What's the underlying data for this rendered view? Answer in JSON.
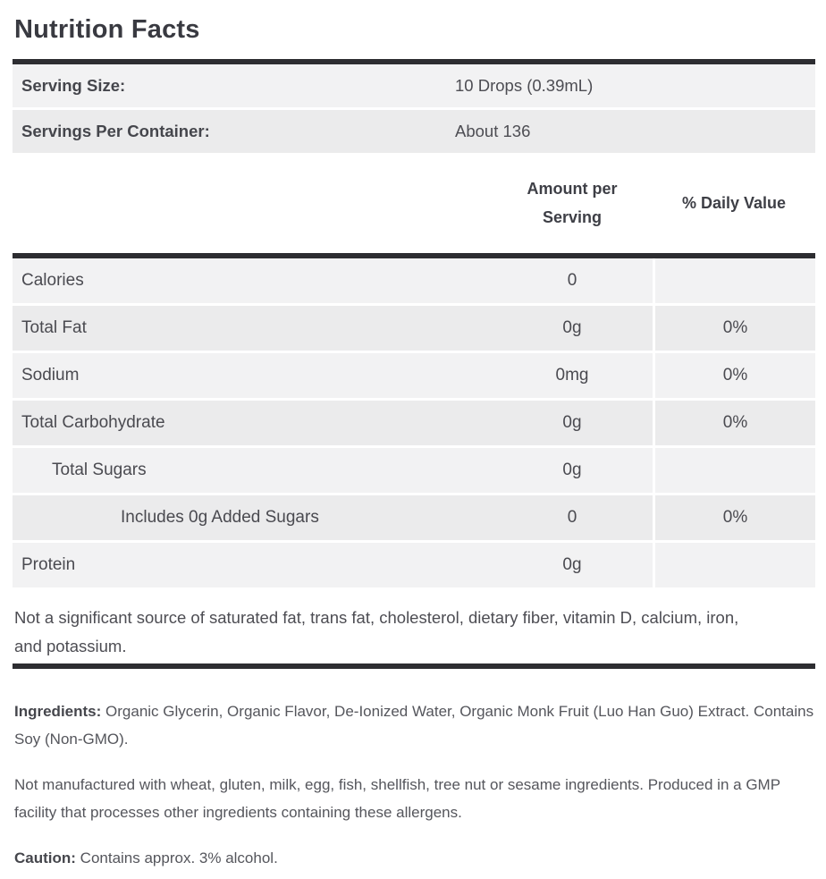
{
  "title": "Nutrition Facts",
  "serving_info": [
    {
      "label": "Serving Size:",
      "value": "10 Drops (0.39mL)"
    },
    {
      "label": "Servings Per Container:",
      "value": "About 136"
    }
  ],
  "table": {
    "headers": {
      "amount": "Amount per Serving",
      "daily_value": "% Daily Value"
    },
    "rows": [
      {
        "label": "Calories",
        "indent": 0,
        "amount": "0",
        "daily_value": ""
      },
      {
        "label": "Total Fat",
        "indent": 0,
        "amount": "0g",
        "daily_value": "0%"
      },
      {
        "label": "Sodium",
        "indent": 0,
        "amount": "0mg",
        "daily_value": "0%"
      },
      {
        "label": "Total Carbohydrate",
        "indent": 0,
        "amount": "0g",
        "daily_value": "0%"
      },
      {
        "label": "Total Sugars",
        "indent": 1,
        "amount": "0g",
        "daily_value": ""
      },
      {
        "label": "Includes 0g Added Sugars",
        "indent": 2,
        "amount": "0",
        "daily_value": "0%"
      },
      {
        "label": "Protein",
        "indent": 0,
        "amount": "0g",
        "daily_value": ""
      }
    ],
    "footnote": "Not a significant source of saturated fat, trans fat, cholesterol, dietary fiber, vitamin D, calcium, iron, and potassium."
  },
  "paragraphs": [
    {
      "bold": "Ingredients:",
      "text": " Organic Glycerin, Organic Flavor, De-Ionized Water, Organic Monk Fruit (Luo Han Guo) Extract. Contains Soy (Non-GMO)."
    },
    {
      "bold": "",
      "text": "Not manufactured with wheat, gluten, milk, egg, fish, shellfish, tree nut or sesame ingredients. Produced in a GMP facility that processes other ingredients containing these allergens."
    },
    {
      "bold": "Caution:",
      "text": " Contains approx. 3% alcohol."
    }
  ],
  "colors": {
    "divider_bar": "#2d2d31",
    "row_light": "#f2f2f3",
    "row_dark": "#ebebec",
    "title_text": "#393a41",
    "body_text": "#55565c"
  }
}
